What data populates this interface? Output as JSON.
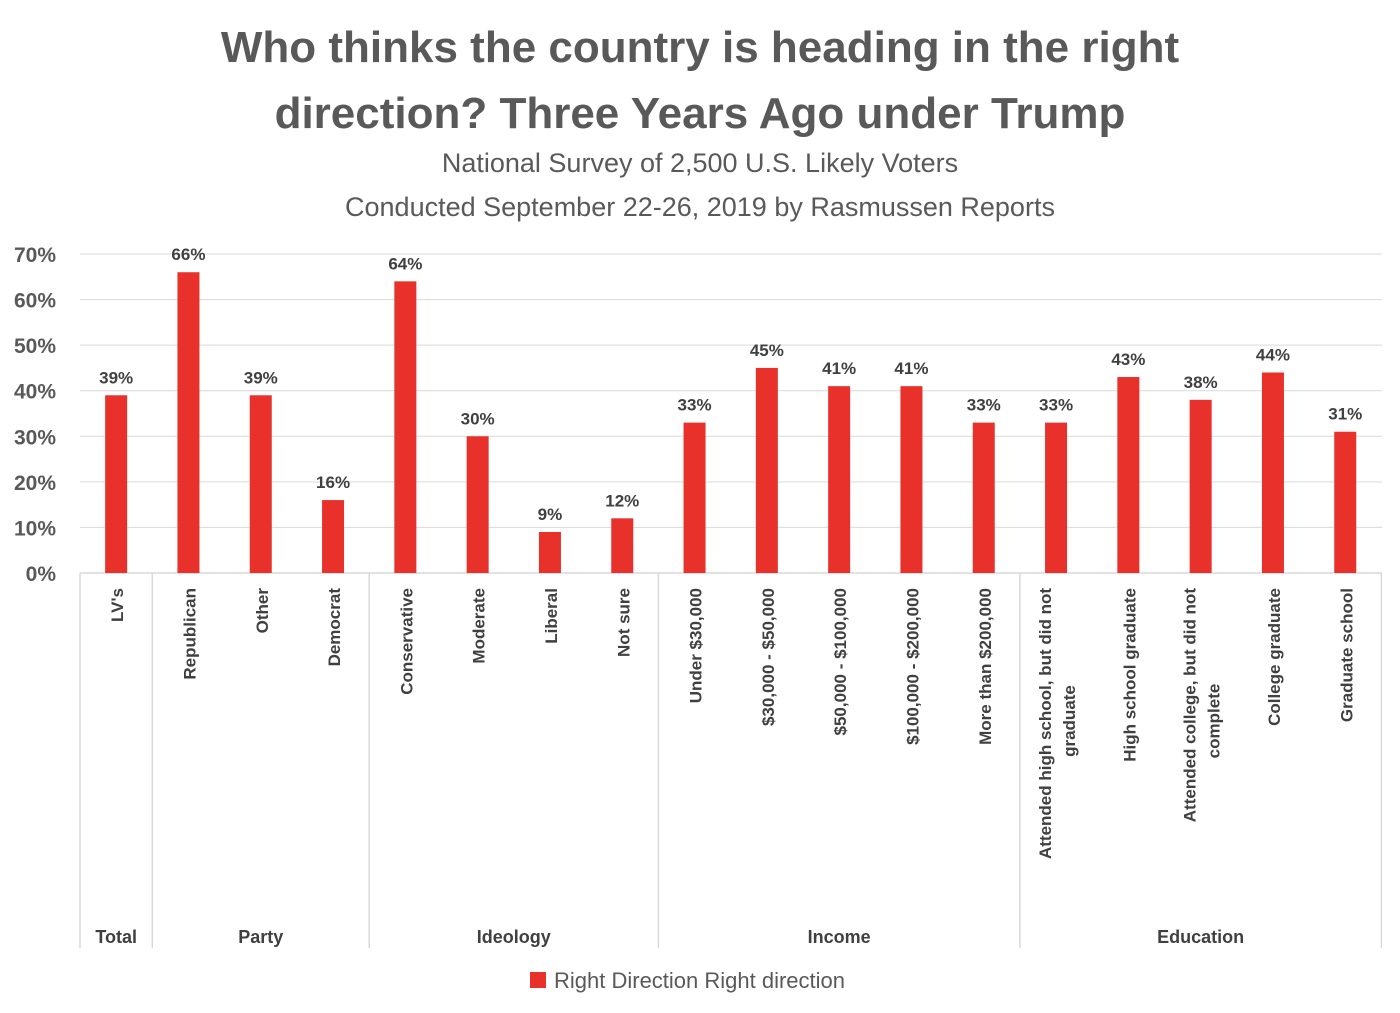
{
  "chart_data": {
    "type": "bar",
    "title_line1": "Who thinks the country is heading in the right",
    "title_line2": "direction? Three Years Ago under Trump",
    "subtitle_line1": "National Survey of 2,500 U.S. Likely Voters",
    "subtitle_line2": "Conducted September 22-26, 2019 by Rasmussen Reports",
    "categories": [
      "LV's",
      "Republican",
      "Other",
      "Democrat",
      "Conservative",
      "Moderate",
      "Liberal",
      "Not sure",
      "Under $30,000",
      "$30,000 - $50,000",
      "$50,000 - $100,000",
      "$100,000 - $200,000",
      "More than $200,000",
      "Attended high school, but did not graduate",
      "High school graduate",
      "Attended college, but did not complete",
      "College graduate",
      "Graduate school"
    ],
    "category_lines": [
      [
        "LV's"
      ],
      [
        "Republican"
      ],
      [
        "Other"
      ],
      [
        "Democrat"
      ],
      [
        "Conservative"
      ],
      [
        "Moderate"
      ],
      [
        "Liberal"
      ],
      [
        "Not sure"
      ],
      [
        "Under $30,000"
      ],
      [
        "$30,000 - $50,000"
      ],
      [
        "$50,000 - $100,000"
      ],
      [
        "$100,000 - $200,000"
      ],
      [
        "More than $200,000"
      ],
      [
        "Attended high school, but did not",
        "graduate"
      ],
      [
        "High school graduate"
      ],
      [
        "Attended college, but did not",
        "complete"
      ],
      [
        "College graduate"
      ],
      [
        "Graduate school"
      ]
    ],
    "groups": [
      {
        "name": "Total",
        "start": 0,
        "count": 1
      },
      {
        "name": "Party",
        "start": 1,
        "count": 3
      },
      {
        "name": "Ideology",
        "start": 4,
        "count": 4
      },
      {
        "name": "Income",
        "start": 8,
        "count": 5
      },
      {
        "name": "Education",
        "start": 13,
        "count": 5
      }
    ],
    "series": [
      {
        "name": "Right Direction Right direction",
        "values": [
          39,
          66,
          39,
          16,
          64,
          30,
          9,
          12,
          33,
          45,
          41,
          41,
          33,
          33,
          43,
          38,
          44,
          31
        ]
      }
    ],
    "data_labels": [
      "39%",
      "66%",
      "39%",
      "16%",
      "64%",
      "30%",
      "9%",
      "12%",
      "33%",
      "45%",
      "41%",
      "41%",
      "33%",
      "33%",
      "43%",
      "38%",
      "44%",
      "31%"
    ],
    "y_ticks": [
      0,
      10,
      20,
      30,
      40,
      50,
      60,
      70
    ],
    "y_tick_labels": [
      "0%",
      "10%",
      "20%",
      "30%",
      "40%",
      "50%",
      "60%",
      "70%"
    ],
    "ylim": [
      0,
      70
    ],
    "xlabel": "",
    "ylabel": "",
    "grid": true,
    "legend_position": "bottom-center",
    "colors": {
      "bar": "#E8312A",
      "text": "#595959",
      "label": "#404040",
      "grid": "#D9D9D9"
    }
  }
}
